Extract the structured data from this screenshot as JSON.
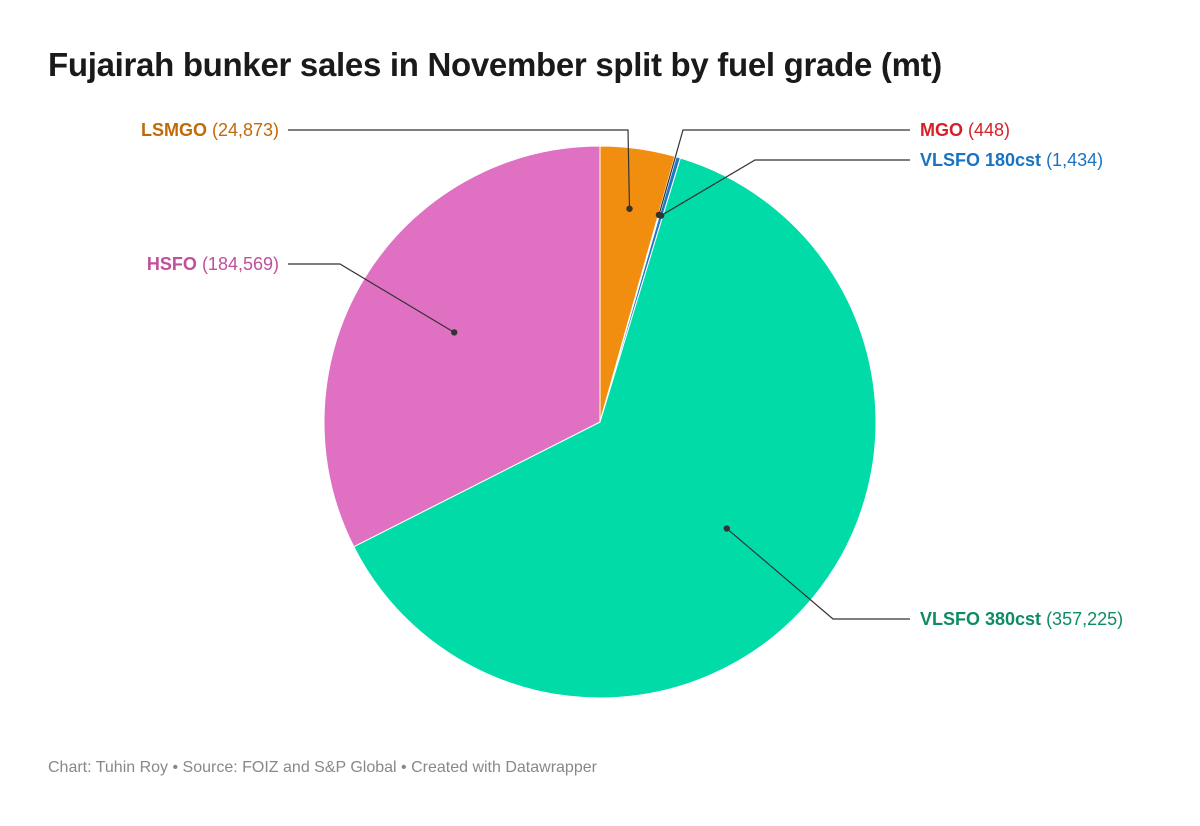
{
  "title": "Fujairah bunker sales in November split by fuel grade (mt)",
  "chart_data": {
    "type": "pie",
    "title": "Fujairah bunker sales in November split by fuel grade (mt)",
    "slices": [
      {
        "label": "LSMGO",
        "value": 24873,
        "value_text": "(24,873)",
        "color": "#f28e0f",
        "label_color": "#c06a0a"
      },
      {
        "label": "MGO",
        "value": 448,
        "value_text": "(448)",
        "color": "#e0272b",
        "label_color": "#d61f26"
      },
      {
        "label": "VLSFO 180cst",
        "value": 1434,
        "value_text": "(1,434)",
        "color": "#1f77c8",
        "label_color": "#1a73c2"
      },
      {
        "label": "VLSFO 380cst",
        "value": 357225,
        "value_text": "(357,225)",
        "color": "#00dba7",
        "label_color": "#0e8c66"
      },
      {
        "label": "HSFO",
        "value": 184569,
        "value_text": "(184,569)",
        "color": "#e070c1",
        "label_color": "#c1509c"
      }
    ]
  },
  "footer": "Chart: Tuhin Roy • Source: FOIZ and S&P Global • Created with Datawrapper"
}
